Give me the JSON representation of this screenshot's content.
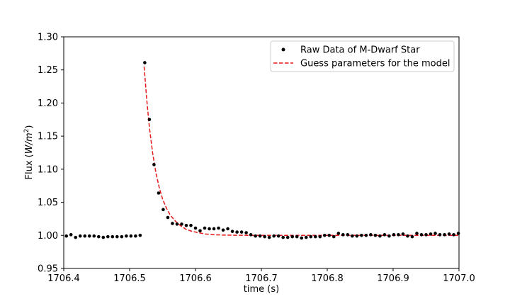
{
  "chart_data": {
    "type": "scatter",
    "title": "",
    "xlabel": "time (s)",
    "ylabel_main": "Flux (",
    "ylabel_italic": "W/m",
    "ylabel_sup": "2",
    "ylabel_close": ")",
    "xlim": [
      1706.4,
      1707.0
    ],
    "ylim": [
      0.95,
      1.3
    ],
    "x_ticks": [
      1706.4,
      1706.5,
      1706.6,
      1706.7,
      1706.8,
      1706.9,
      1707.0
    ],
    "x_tick_labels": [
      "1706.4",
      "1706.5",
      "1706.6",
      "1706.7",
      "1706.8",
      "1706.9",
      "1707.0"
    ],
    "y_ticks": [
      0.95,
      1.0,
      1.05,
      1.1,
      1.15,
      1.2,
      1.25,
      1.3
    ],
    "y_tick_labels": [
      "0.95",
      "1.00",
      "1.05",
      "1.10",
      "1.15",
      "1.20",
      "1.25",
      "1.30"
    ],
    "legend_position": "top-right",
    "series": [
      {
        "name": "Raw Data of M-Dwarf Star",
        "kind": "scatter",
        "color": "#000000",
        "x": [
          1706.404,
          1706.411,
          1706.418,
          1706.425,
          1706.432,
          1706.439,
          1706.446,
          1706.453,
          1706.46,
          1706.467,
          1706.474,
          1706.481,
          1706.488,
          1706.495,
          1706.502,
          1706.509,
          1706.516,
          1706.523,
          1706.53,
          1706.537,
          1706.544,
          1706.551,
          1706.558,
          1706.565,
          1706.572,
          1706.579,
          1706.586,
          1706.593,
          1706.6,
          1706.607,
          1706.614,
          1706.621,
          1706.628,
          1706.635,
          1706.642,
          1706.649,
          1706.656,
          1706.663,
          1706.67,
          1706.677,
          1706.684,
          1706.691,
          1706.698,
          1706.705,
          1706.712,
          1706.719,
          1706.726,
          1706.733,
          1706.74,
          1706.747,
          1706.754,
          1706.761,
          1706.768,
          1706.775,
          1706.782,
          1706.789,
          1706.796,
          1706.803,
          1706.81,
          1706.817,
          1706.824,
          1706.831,
          1706.838,
          1706.845,
          1706.852,
          1706.859,
          1706.866,
          1706.873,
          1706.88,
          1706.887,
          1706.894,
          1706.901,
          1706.908,
          1706.915,
          1706.922,
          1706.929,
          1706.936,
          1706.943,
          1706.95,
          1706.957,
          1706.964,
          1706.971,
          1706.978,
          1706.985,
          1706.992,
          1706.999
        ],
        "y": [
          0.999,
          1.001,
          0.997,
          0.999,
          0.999,
          0.999,
          0.999,
          0.998,
          0.997,
          0.998,
          0.998,
          0.998,
          0.998,
          0.999,
          0.999,
          0.999,
          1.0,
          1.261,
          1.175,
          1.107,
          1.064,
          1.039,
          1.027,
          1.018,
          1.017,
          1.017,
          1.015,
          1.015,
          1.011,
          1.007,
          1.011,
          1.01,
          1.01,
          1.011,
          1.008,
          1.01,
          1.006,
          1.005,
          1.005,
          1.004,
          1.001,
          0.999,
          0.999,
          0.998,
          0.997,
          0.999,
          0.999,
          0.997,
          0.997,
          0.998,
          0.998,
          0.996,
          0.997,
          0.998,
          0.998,
          0.998,
          1.0,
          1.0,
          0.998,
          1.003,
          1.001,
          1.001,
          0.999,
          0.999,
          1.0,
          1.0,
          1.001,
          1.0,
          0.999,
          1.001,
          0.999,
          1.001,
          1.001,
          1.002,
          0.999,
          0.998,
          1.003,
          1.001,
          1.001,
          1.002,
          1.003,
          1.001,
          1.001,
          1.002,
          1.001,
          1.003
        ]
      },
      {
        "name": "Guess parameters for the model",
        "kind": "line",
        "style": "dashed",
        "color": "#e41a1c",
        "x": [
          1706.522,
          1706.526,
          1706.53,
          1706.535,
          1706.54,
          1706.545,
          1706.55,
          1706.556,
          1706.562,
          1706.57,
          1706.578,
          1706.586,
          1706.595,
          1706.605,
          1706.615,
          1706.628,
          1706.642,
          1706.66,
          1706.68,
          1706.7,
          1706.75,
          1706.8,
          1706.85,
          1706.9,
          1706.95,
          1707.0
        ],
        "y": [
          1.255,
          1.205,
          1.163,
          1.124,
          1.094,
          1.072,
          1.055,
          1.041,
          1.03,
          1.021,
          1.014,
          1.009,
          1.006,
          1.004,
          1.002,
          1.001,
          1.0005,
          1.0002,
          1.0001,
          1.0,
          1.0,
          1.0,
          1.0,
          1.0,
          1.0,
          1.0
        ]
      }
    ]
  }
}
